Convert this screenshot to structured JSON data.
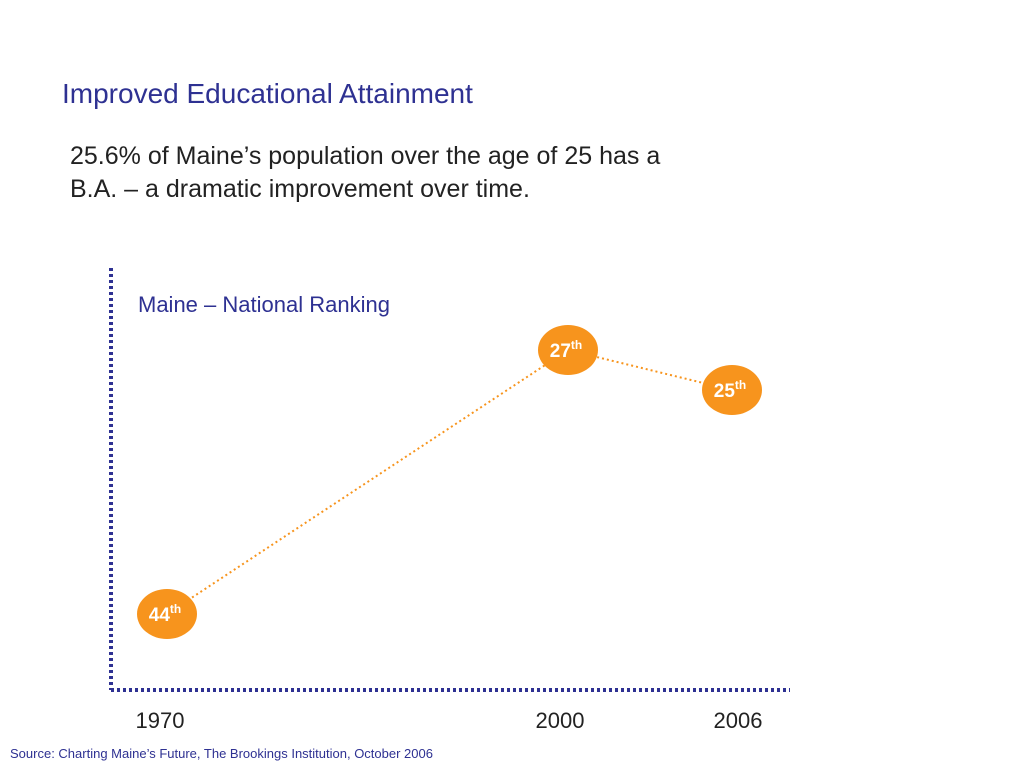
{
  "header": {
    "title": "Improved Educational Attainment",
    "subtitle_lines": [
      "25.6% of Maine’s population over the age of 25 has a",
      "B.A. – a dramatic improvement over time."
    ]
  },
  "chart_data": {
    "type": "line",
    "title": "Maine – National Ranking",
    "x": [
      "1970",
      "2000",
      "2006"
    ],
    "x_values": [
      1970,
      2000,
      2006
    ],
    "series": [
      {
        "values": [
          44,
          27,
          25
        ],
        "labels": [
          "44",
          "27",
          "25"
        ],
        "suffix": "th"
      }
    ],
    "xlabel": "",
    "ylabel": "",
    "grid": false,
    "y_inverted": true,
    "colors": {
      "marker": "#f7941d",
      "line": "#f7941d",
      "axis": "#2e3192",
      "title": "#2e3192",
      "label_text": "#ffffff"
    }
  },
  "footer": {
    "source": "Source: Charting Maine’s Future, The Brookings Institution, October 2006"
  }
}
